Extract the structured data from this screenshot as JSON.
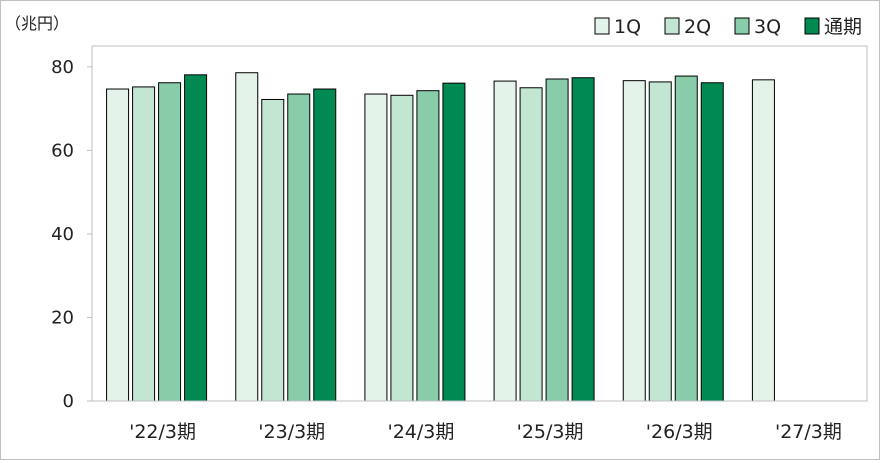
{
  "chart_data": {
    "type": "bar",
    "unit_label": "（兆円）",
    "categories": [
      "'22/3期",
      "'23/3期",
      "'24/3期",
      "'25/3期",
      "'26/3期",
      "'27/3期"
    ],
    "series": [
      {
        "name": "1Q",
        "color": "#e4f3ea",
        "values": [
          74.7,
          78.6,
          73.5,
          76.6,
          76.7,
          76.9
        ]
      },
      {
        "name": "2Q",
        "color": "#c2e6d2",
        "values": [
          75.2,
          72.2,
          73.2,
          75.0,
          76.4,
          null
        ]
      },
      {
        "name": "3Q",
        "color": "#88ccaa",
        "values": [
          76.2,
          73.5,
          74.3,
          77.1,
          77.8,
          null
        ]
      },
      {
        "name": "通期",
        "color": "#008a52",
        "values": [
          78.1,
          74.7,
          76.1,
          77.4,
          76.2,
          null
        ]
      }
    ],
    "ylim": [
      0,
      85
    ],
    "yticks": [
      0,
      20,
      40,
      60,
      80
    ],
    "legend_position": "top-right",
    "grid": false
  }
}
